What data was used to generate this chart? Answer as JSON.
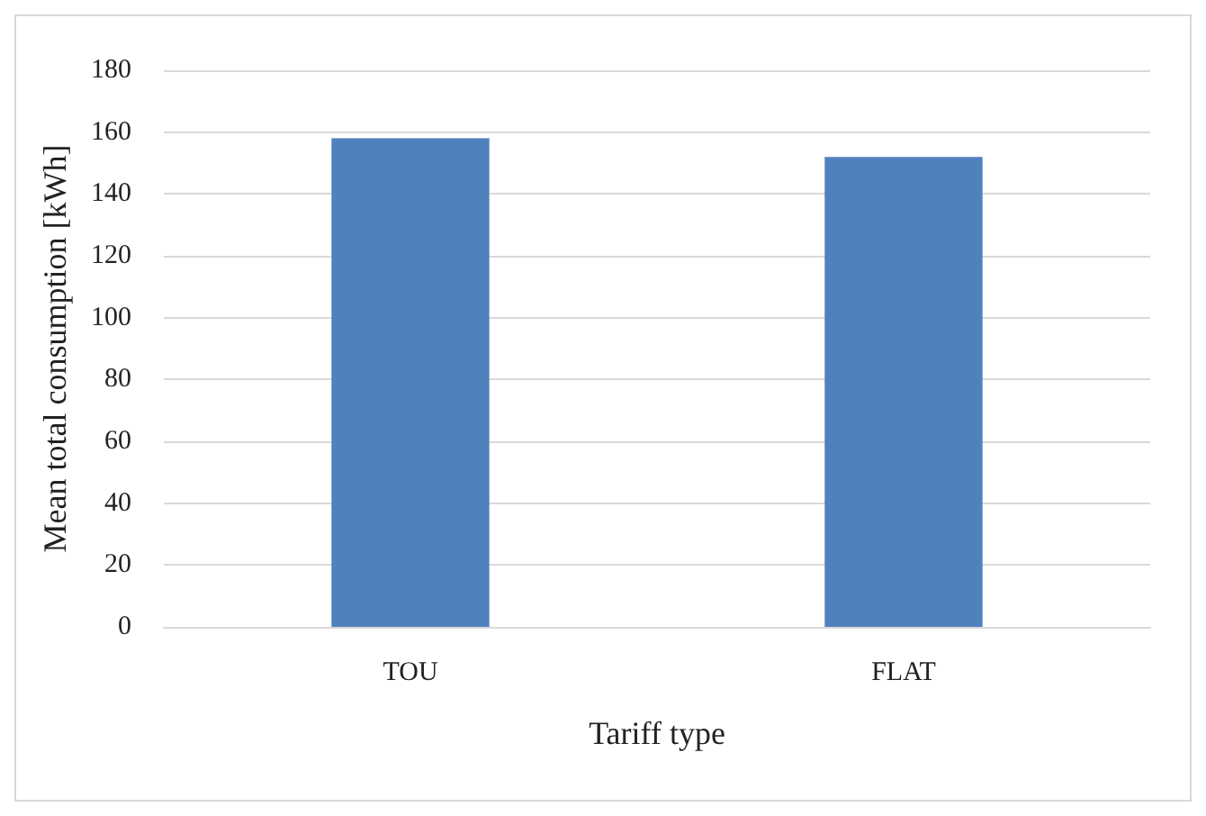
{
  "chart_data": {
    "type": "bar",
    "categories": [
      "TOU",
      "FLAT"
    ],
    "values": [
      158,
      152
    ],
    "color": "#4f81bd",
    "xlabel": "Tariff type",
    "ylabel": "Mean total consumption [kWh]",
    "ylim": [
      0,
      180
    ],
    "yticks": [
      0,
      20,
      40,
      60,
      80,
      100,
      120,
      140,
      160,
      180
    ],
    "grid": "y"
  }
}
